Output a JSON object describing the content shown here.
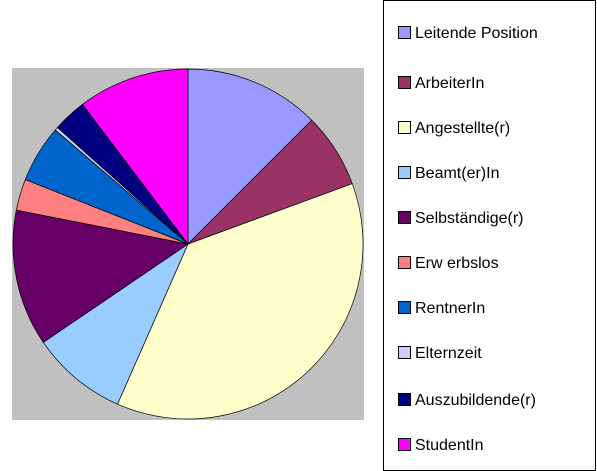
{
  "chart_data": {
    "type": "pie",
    "categories": [
      "Leitende Position",
      "ArbeiterIn",
      "Angestellte(r)",
      "Beamt(er)In",
      "Selbständige(r)",
      "Erw erbslos",
      "RentnerIn",
      "Elternzeit",
      "Auszubildende(r)",
      "StudentIn"
    ],
    "values": [
      12.5,
      6.9,
      37.2,
      8.9,
      12.6,
      2.9,
      5.3,
      0.3,
      3.1,
      10.3
    ],
    "colors": [
      "#9999ff",
      "#993366",
      "#ffffcc",
      "#99ccff",
      "#660066",
      "#ff8080",
      "#0066cc",
      "#ccccff",
      "#000080",
      "#ff00ff"
    ],
    "legend": "right"
  }
}
